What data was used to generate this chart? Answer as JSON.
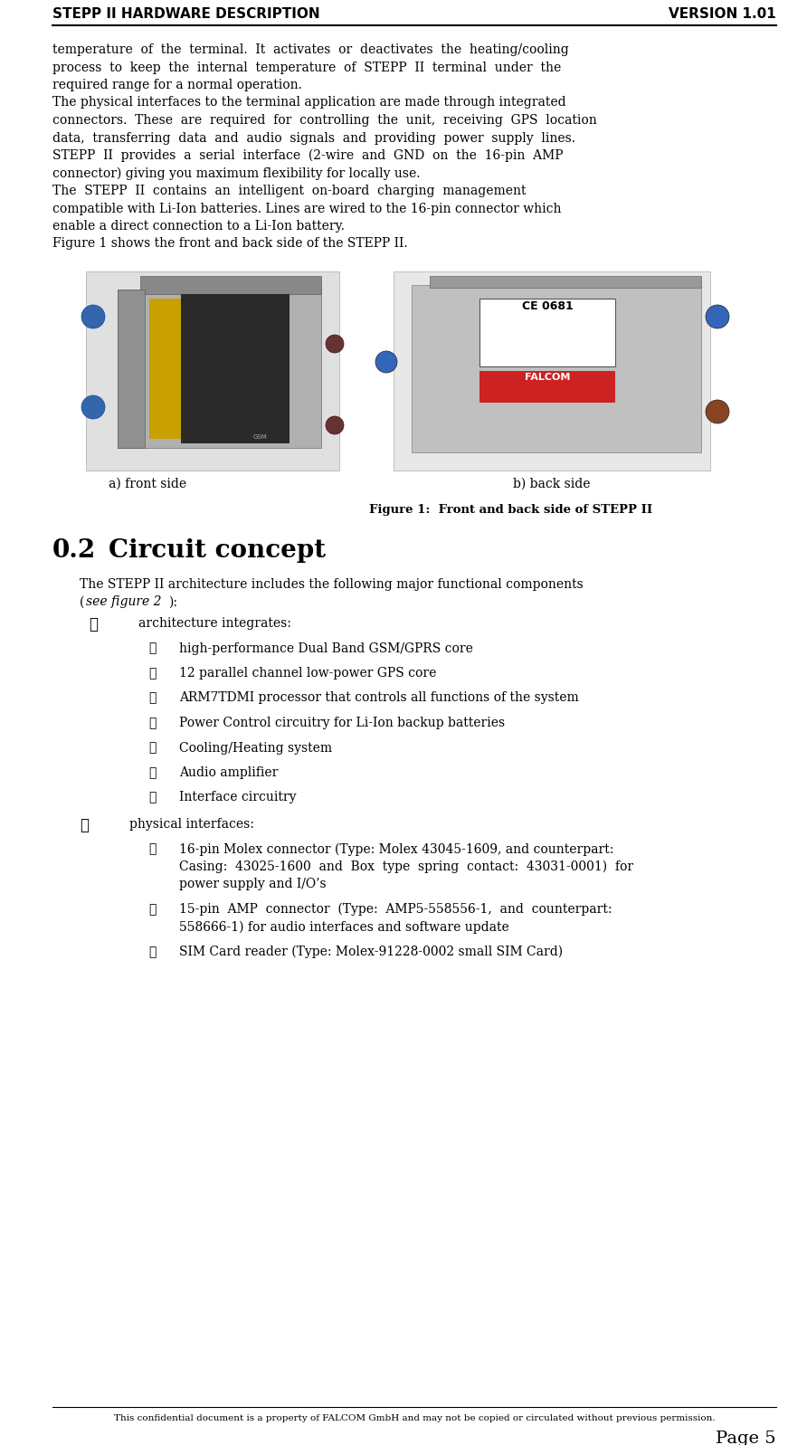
{
  "header_left": "STEPP II HARDWARE DESCRIPTION",
  "header_right": "VERSION 1.01",
  "footer_text": "This confidential document is a property of FALCOM GmbH and may not be copied or circulated without previous permission.",
  "footer_page": "Page 5",
  "para1": [
    "temperature  of  the  terminal.  It  activates  or  deactivates  the  heating/cooling",
    "process  to  keep  the  internal  temperature  of  STEPP  II  terminal  under  the",
    "required range for a normal operation."
  ],
  "para2": [
    "The physical interfaces to the terminal application are made through integrated",
    "connectors.  These  are  required  for  controlling  the  unit,  receiving  GPS  location",
    "data,  transferring  data  and  audio  signals  and  providing  power  supply  lines.",
    "STEPP  II  provides  a  serial  interface  (2-wire  and  GND  on  the  16-pin  AMP",
    "connector) giving you maximum flexibility for locally use."
  ],
  "para3": [
    "The  STEPP  II  contains  an  intelligent  on-board  charging  management",
    "compatible with Li-Ion batteries. Lines are wired to the 16-pin connector which",
    "enable a direct connection to a Li-Ion battery."
  ],
  "para4": "Figure 1 shows the front and back side of the STEPP II.",
  "fig_caption_a": "a) front side",
  "fig_caption_b": "b) back side",
  "figure_label": "Figure 1:  Front and back side of STEPP II",
  "section_num": "0.2",
  "section_title": "Circuit concept",
  "intro_line1": "The STEPP II architecture includes the following major functional components",
  "intro_line2": "(see figure 2):",
  "diamond1_text": "architecture integrates:",
  "check1_items": [
    "high-performance Dual Band GSM/GPRS core",
    "12 parallel channel low-power GPS core",
    "ARM7TDMI processor that controls all functions of the system",
    "Power Control circuitry for Li-Ion backup batteries",
    "Cooling/Heating system",
    "Audio amplifier",
    "Interface circuitry"
  ],
  "diamond2_text": "physical interfaces:",
  "check2_item1_lines": [
    "16-pin Molex connector (Type: Molex 43045-1609, and counterpart:",
    "Casing:  43025-1600  and  Box  type  spring  contact:  43031-0001)  for",
    "power supply and I/O’s"
  ],
  "check2_item2_lines": [
    "15-pin  AMP  connector  (Type:  AMP5-558556-1,  and  counterpart:",
    "558666-1) for audio interfaces and software update"
  ],
  "check2_item3": "SIM Card reader (Type: Molex-91228-0002 small SIM Card)",
  "bg_color": "#ffffff",
  "text_color": "#000000"
}
